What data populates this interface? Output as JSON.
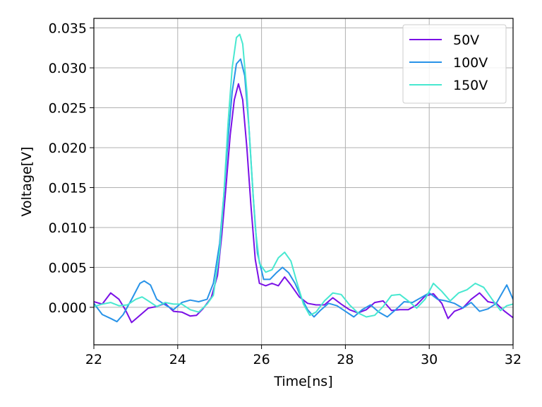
{
  "chart_data": {
    "type": "line",
    "title": "",
    "xlabel": "Time[ns]",
    "ylabel": "Voltage[V]",
    "xlim": [
      22,
      32
    ],
    "ylim": [
      -0.0047,
      0.0362
    ],
    "xticks": [
      22,
      24,
      26,
      28,
      30,
      32
    ],
    "yticks": [
      0.0,
      0.005,
      0.01,
      0.015,
      0.02,
      0.025,
      0.03,
      0.035
    ],
    "ytick_labels": [
      "0.000",
      "0.005",
      "0.010",
      "0.015",
      "0.020",
      "0.025",
      "0.030",
      "0.035"
    ],
    "grid": true,
    "legend": "top-right",
    "series": [
      {
        "name": "50V",
        "color": "#7a10e6",
        "points": [
          [
            22.0,
            0.0007
          ],
          [
            22.2,
            0.0004
          ],
          [
            22.4,
            0.0018
          ],
          [
            22.6,
            0.001
          ],
          [
            22.75,
            -0.0003
          ],
          [
            22.9,
            -0.0019
          ],
          [
            23.1,
            -0.001
          ],
          [
            23.3,
            -0.0001
          ],
          [
            23.5,
            0.0001
          ],
          [
            23.7,
            0.0005
          ],
          [
            23.9,
            -0.0005
          ],
          [
            24.1,
            -0.0006
          ],
          [
            24.3,
            -0.0011
          ],
          [
            24.45,
            -0.001
          ],
          [
            24.6,
            -0.0002
          ],
          [
            24.8,
            0.0012
          ],
          [
            24.95,
            0.004
          ],
          [
            25.05,
            0.009
          ],
          [
            25.15,
            0.015
          ],
          [
            25.25,
            0.0215
          ],
          [
            25.35,
            0.026
          ],
          [
            25.45,
            0.028
          ],
          [
            25.55,
            0.026
          ],
          [
            25.65,
            0.02
          ],
          [
            25.75,
            0.0125
          ],
          [
            25.85,
            0.006
          ],
          [
            25.95,
            0.003
          ],
          [
            26.1,
            0.0027
          ],
          [
            26.25,
            0.003
          ],
          [
            26.4,
            0.0027
          ],
          [
            26.55,
            0.0038
          ],
          [
            26.7,
            0.0028
          ],
          [
            26.9,
            0.0013
          ],
          [
            27.1,
            0.0005
          ],
          [
            27.3,
            0.0003
          ],
          [
            27.5,
            0.0003
          ],
          [
            27.7,
            0.0012
          ],
          [
            27.9,
            0.0004
          ],
          [
            28.1,
            -0.0003
          ],
          [
            28.3,
            -0.0007
          ],
          [
            28.5,
            -0.0003
          ],
          [
            28.7,
            0.0006
          ],
          [
            28.9,
            0.0008
          ],
          [
            29.1,
            -0.0004
          ],
          [
            29.3,
            -0.0003
          ],
          [
            29.5,
            -0.0003
          ],
          [
            29.7,
            0.0003
          ],
          [
            29.9,
            0.0014
          ],
          [
            30.1,
            0.0017
          ],
          [
            30.3,
            0.0005
          ],
          [
            30.45,
            -0.0014
          ],
          [
            30.6,
            -0.0005
          ],
          [
            30.8,
            -0.0001
          ],
          [
            31.0,
            0.001
          ],
          [
            31.2,
            0.0018
          ],
          [
            31.4,
            0.0007
          ],
          [
            31.6,
            0.0005
          ],
          [
            31.8,
            -0.0005
          ],
          [
            32.0,
            -0.0013
          ]
        ]
      },
      {
        "name": "100V",
        "color": "#2893e8",
        "points": [
          [
            22.0,
            0.0005
          ],
          [
            22.2,
            -0.0009
          ],
          [
            22.4,
            -0.0014
          ],
          [
            22.55,
            -0.0018
          ],
          [
            22.7,
            -0.0009
          ],
          [
            22.9,
            0.001
          ],
          [
            23.1,
            0.003
          ],
          [
            23.2,
            0.0033
          ],
          [
            23.35,
            0.0028
          ],
          [
            23.5,
            0.001
          ],
          [
            23.7,
            0.0003
          ],
          [
            23.9,
            -0.0003
          ],
          [
            24.1,
            0.0006
          ],
          [
            24.3,
            0.0009
          ],
          [
            24.5,
            0.0007
          ],
          [
            24.7,
            0.001
          ],
          [
            24.85,
            0.003
          ],
          [
            25.0,
            0.008
          ],
          [
            25.1,
            0.014
          ],
          [
            25.2,
            0.021
          ],
          [
            25.3,
            0.027
          ],
          [
            25.4,
            0.0305
          ],
          [
            25.5,
            0.0311
          ],
          [
            25.6,
            0.029
          ],
          [
            25.7,
            0.0225
          ],
          [
            25.8,
            0.014
          ],
          [
            25.9,
            0.0068
          ],
          [
            26.05,
            0.0035
          ],
          [
            26.2,
            0.0035
          ],
          [
            26.35,
            0.0043
          ],
          [
            26.5,
            0.005
          ],
          [
            26.65,
            0.0043
          ],
          [
            26.8,
            0.003
          ],
          [
            26.95,
            0.0012
          ],
          [
            27.1,
            -0.0003
          ],
          [
            27.25,
            -0.0012
          ],
          [
            27.4,
            -0.0004
          ],
          [
            27.6,
            0.0005
          ],
          [
            27.8,
            0.0002
          ],
          [
            28.0,
            -0.0005
          ],
          [
            28.2,
            -0.0012
          ],
          [
            28.4,
            -0.0003
          ],
          [
            28.6,
            0.0003
          ],
          [
            28.8,
            -0.0006
          ],
          [
            29.0,
            -0.0012
          ],
          [
            29.2,
            -0.0003
          ],
          [
            29.4,
            0.0007
          ],
          [
            29.6,
            0.0006
          ],
          [
            29.8,
            0.0012
          ],
          [
            30.0,
            0.0018
          ],
          [
            30.2,
            0.001
          ],
          [
            30.4,
            0.0008
          ],
          [
            30.6,
            0.0005
          ],
          [
            30.8,
            -0.0001
          ],
          [
            31.0,
            0.0006
          ],
          [
            31.2,
            -0.0005
          ],
          [
            31.4,
            -0.0002
          ],
          [
            31.6,
            0.0005
          ],
          [
            31.85,
            0.0028
          ],
          [
            32.0,
            0.001
          ]
        ]
      },
      {
        "name": "150V",
        "color": "#48e8d0",
        "points": [
          [
            22.0,
            0.0001
          ],
          [
            22.2,
            0.0004
          ],
          [
            22.4,
            0.0006
          ],
          [
            22.6,
            0.0002
          ],
          [
            22.8,
            0.0003
          ],
          [
            23.0,
            0.001
          ],
          [
            23.15,
            0.0013
          ],
          [
            23.3,
            0.0008
          ],
          [
            23.5,
            0.0001
          ],
          [
            23.7,
            0.0006
          ],
          [
            23.9,
            0.0004
          ],
          [
            24.1,
            0.0004
          ],
          [
            24.3,
            -0.0003
          ],
          [
            24.5,
            -0.0006
          ],
          [
            24.7,
            0.0004
          ],
          [
            24.85,
            0.0015
          ],
          [
            25.0,
            0.007
          ],
          [
            25.1,
            0.014
          ],
          [
            25.2,
            0.023
          ],
          [
            25.3,
            0.03
          ],
          [
            25.4,
            0.0338
          ],
          [
            25.48,
            0.0342
          ],
          [
            25.55,
            0.033
          ],
          [
            25.65,
            0.027
          ],
          [
            25.75,
            0.018
          ],
          [
            25.85,
            0.01
          ],
          [
            25.95,
            0.0055
          ],
          [
            26.1,
            0.0044
          ],
          [
            26.25,
            0.0047
          ],
          [
            26.4,
            0.0062
          ],
          [
            26.55,
            0.0069
          ],
          [
            26.7,
            0.0058
          ],
          [
            26.85,
            0.003
          ],
          [
            27.0,
            0.0004
          ],
          [
            27.15,
            -0.001
          ],
          [
            27.3,
            -0.0006
          ],
          [
            27.5,
            0.0008
          ],
          [
            27.7,
            0.0018
          ],
          [
            27.9,
            0.0016
          ],
          [
            28.1,
            0.0003
          ],
          [
            28.3,
            -0.0007
          ],
          [
            28.5,
            -0.0012
          ],
          [
            28.7,
            -0.001
          ],
          [
            28.9,
            0.0001
          ],
          [
            29.1,
            0.0015
          ],
          [
            29.3,
            0.0016
          ],
          [
            29.5,
            0.0008
          ],
          [
            29.7,
            -0.0001
          ],
          [
            29.9,
            0.001
          ],
          [
            30.1,
            0.003
          ],
          [
            30.3,
            0.002
          ],
          [
            30.5,
            0.0008
          ],
          [
            30.7,
            0.0018
          ],
          [
            30.9,
            0.0022
          ],
          [
            31.1,
            0.003
          ],
          [
            31.3,
            0.0025
          ],
          [
            31.5,
            0.001
          ],
          [
            31.7,
            -0.0004
          ],
          [
            31.85,
            0.0002
          ],
          [
            32.0,
            0.0004
          ]
        ]
      }
    ]
  }
}
